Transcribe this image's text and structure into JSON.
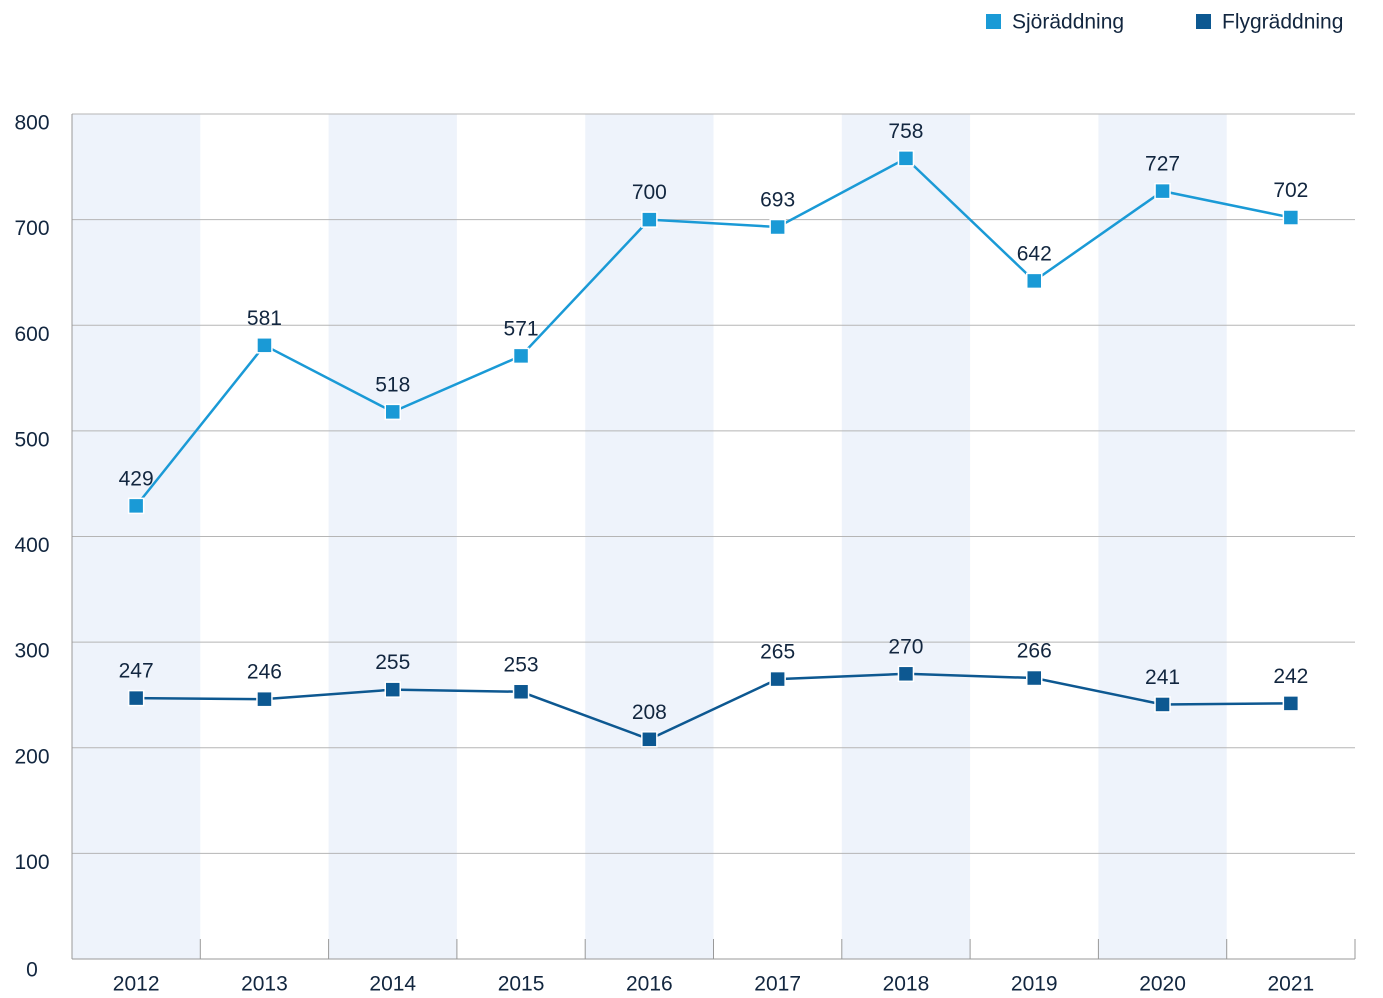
{
  "chart_data": {
    "type": "line",
    "categories": [
      "2012",
      "2013",
      "2014",
      "2015",
      "2016",
      "2017",
      "2018",
      "2019",
      "2020",
      "2021"
    ],
    "series": [
      {
        "name": "Sjöräddning",
        "color": "#1a9ad6",
        "values": [
          429,
          581,
          518,
          571,
          700,
          693,
          758,
          642,
          727,
          702
        ]
      },
      {
        "name": "Flygräddning",
        "color": "#0d5891",
        "values": [
          247,
          246,
          255,
          253,
          208,
          265,
          270,
          266,
          241,
          242
        ]
      }
    ],
    "ylim": [
      0,
      800
    ],
    "yticks": [
      0,
      100,
      200,
      300,
      400,
      500,
      600,
      700,
      800
    ],
    "grid": true,
    "legend": "top-right",
    "band_color": "#eef3fb"
  }
}
